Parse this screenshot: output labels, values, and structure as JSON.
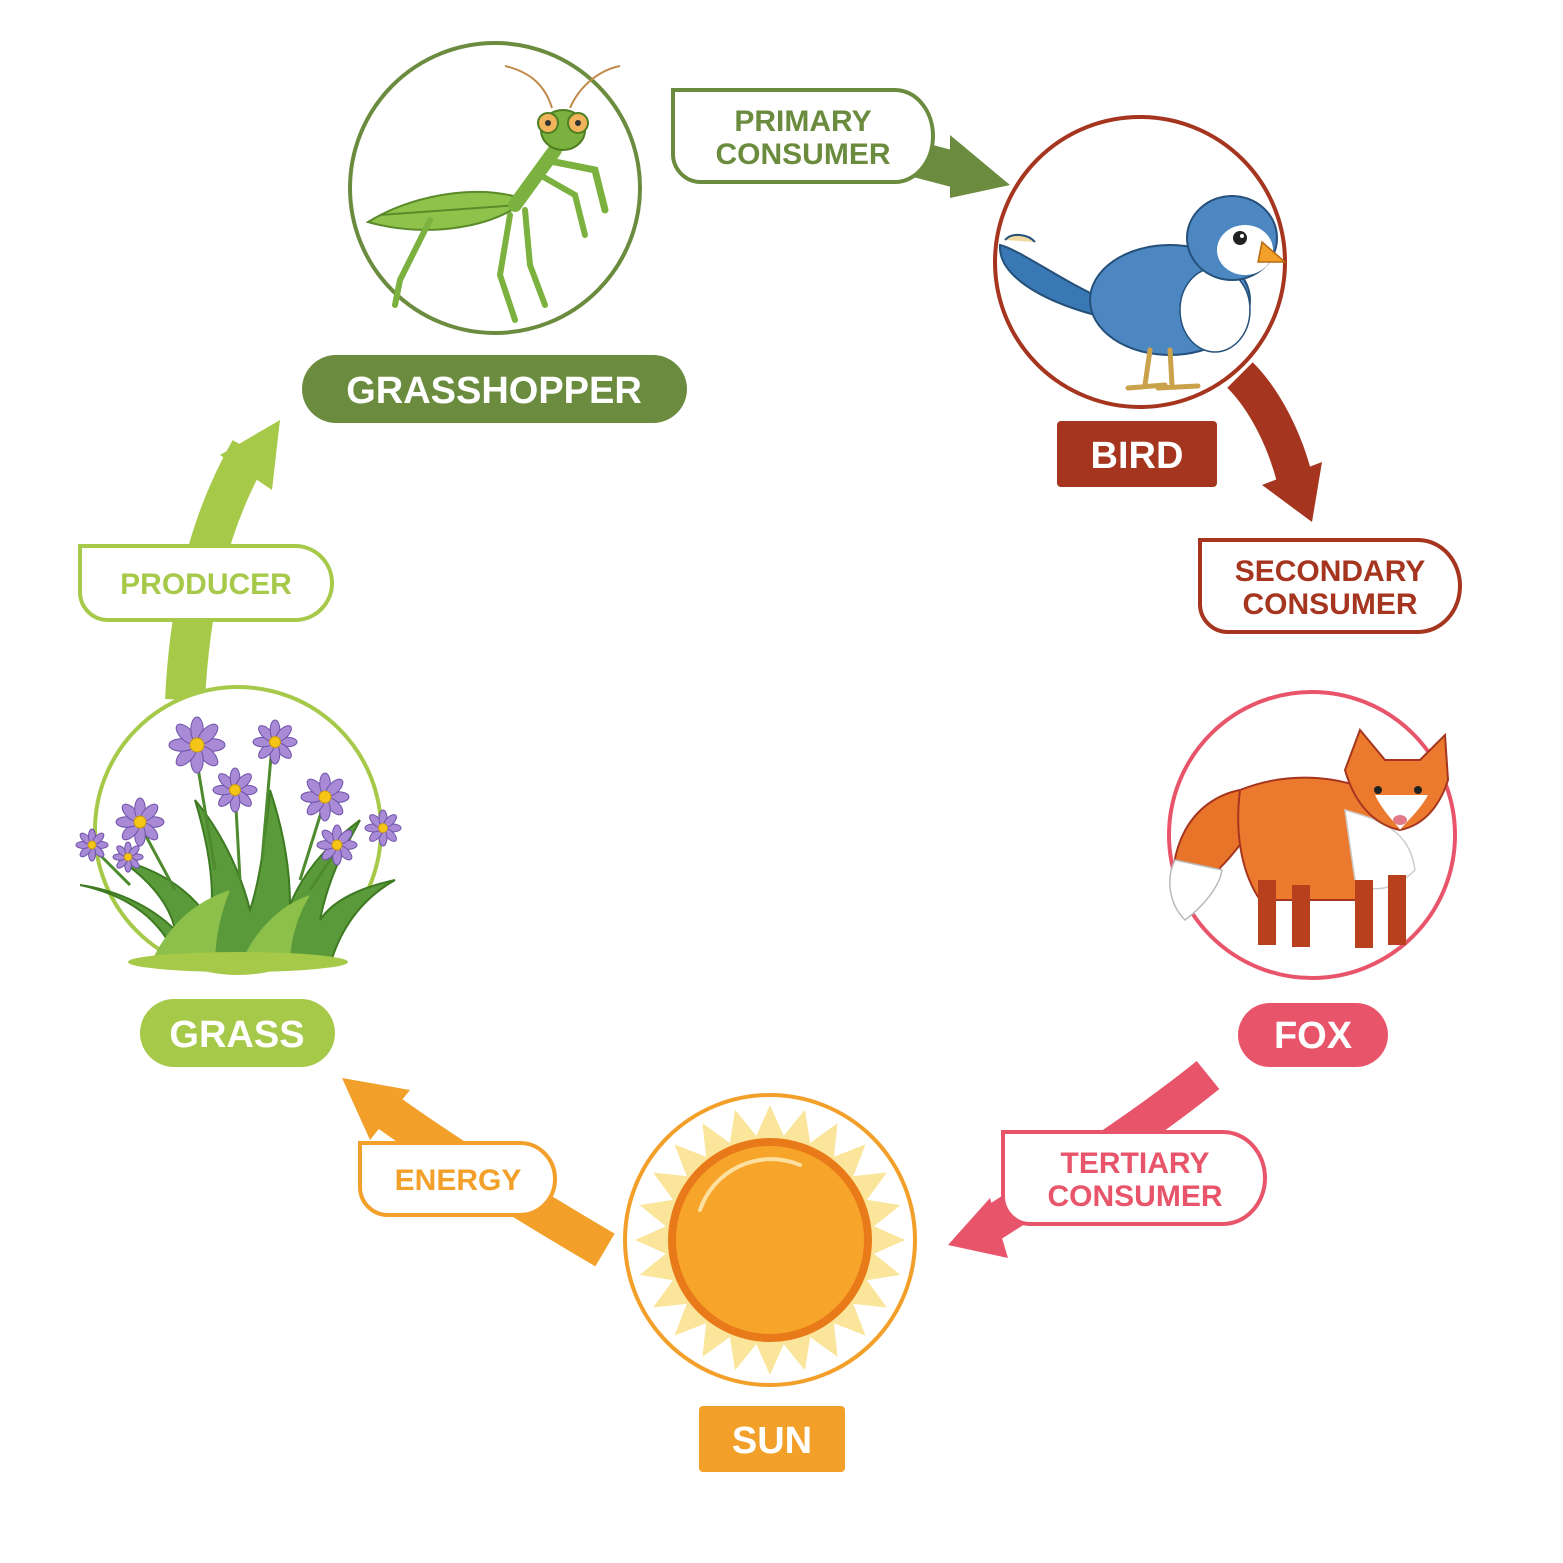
{
  "nodes": {
    "grasshopper": {
      "label": "GRASSHOPPER",
      "color": "#6b8c3e"
    },
    "bird": {
      "label": "BIRD",
      "color": "#a5351e"
    },
    "fox": {
      "label": "FOX",
      "color": "#e8556a"
    },
    "sun": {
      "label": "SUN",
      "color": "#f2a02a"
    },
    "grass": {
      "label": "GRASS",
      "color": "#a6c94a"
    }
  },
  "roles": {
    "primary": {
      "line1": "PRIMARY",
      "line2": "CONSUMER"
    },
    "secondary": {
      "line1": "SECONDARY",
      "line2": "CONSUMER"
    },
    "tertiary": {
      "line1": "TERTIARY",
      "line2": "CONSUMER"
    },
    "energy": {
      "line1": "ENERGY"
    },
    "producer": {
      "line1": "PRODUCER"
    }
  },
  "icons": [
    "grasshopper-icon",
    "bird-icon",
    "fox-icon",
    "sun-icon",
    "grass-flowers-icon"
  ]
}
